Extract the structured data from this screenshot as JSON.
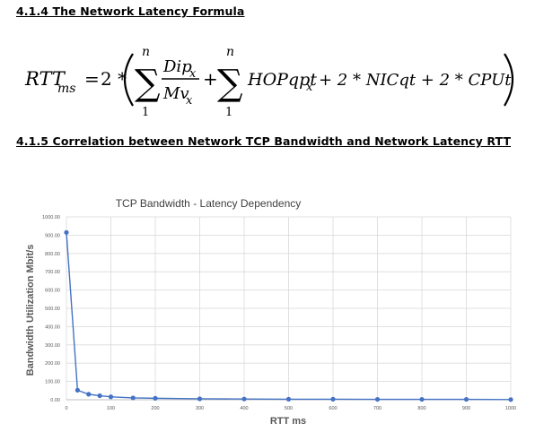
{
  "sections": [
    {
      "number": "4.1.4",
      "title": "The Network Latency Formula"
    },
    {
      "number": "4.1.5",
      "title": "Correlation between Network TCP Bandwidth and Network Latency RTT"
    }
  ],
  "headings": {
    "latency_formula": "4.1.4 The Network Latency Formula",
    "correlation": "4.1.5 Correlation between Network TCP Bandwidth and Network Latency RTT"
  },
  "formula": {
    "lhs": "RTT",
    "lhs_sub": "ms",
    "equals": "=",
    "factor": "2 *",
    "sum_upper": "n",
    "sum_lower": "1",
    "numerator": "Dip",
    "numerator_sub": "x",
    "denominator": "Mv",
    "denominator_sub": "x",
    "plus": "+",
    "term2": "HOPqpt",
    "term2_sub": "x",
    "rest": "+ 2 * NICqt + 2 * CPUt"
  },
  "chart_data": {
    "type": "line",
    "title": "TCP Bandwidth - Latency Dependency",
    "xlabel": "RTT ms",
    "ylabel": "Bandwidth Utilization Mbit/s",
    "xlim": [
      0,
      1000
    ],
    "ylim": [
      0,
      1000
    ],
    "x_ticks": [
      "0",
      "100",
      "200",
      "300",
      "400",
      "500",
      "600",
      "700",
      "800",
      "900",
      "1000"
    ],
    "y_ticks": [
      "0.00",
      "100.00",
      "200.00",
      "300.00",
      "400.00",
      "500.00",
      "600.00",
      "700.00",
      "800.00",
      "900.00",
      "1000.00"
    ],
    "grid": true,
    "legend": false,
    "series_color": "#4472C4",
    "series": [
      {
        "x": [
          0,
          25,
          50,
          75,
          100,
          150,
          200,
          300,
          400,
          500,
          600,
          700,
          800,
          900,
          1000
        ],
        "y": [
          915,
          52,
          30,
          22,
          16,
          10,
          8,
          5,
          4,
          3,
          3,
          2,
          2,
          2,
          1
        ]
      }
    ]
  }
}
